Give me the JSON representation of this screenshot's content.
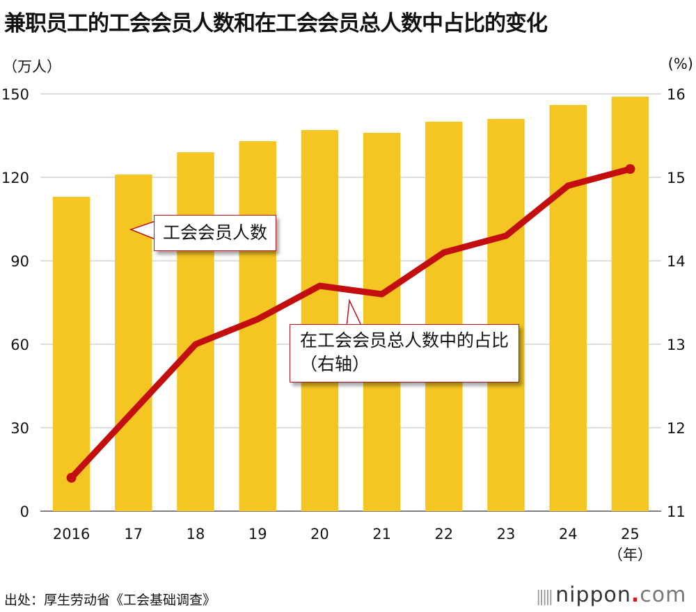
{
  "title": "兼职员工的工会会员人数和在工会会员总人数中占比的变化",
  "unit_left": "（万人）",
  "unit_right": "(%)",
  "source": "出处：厚生劳动省《工会基础调查》",
  "brand": {
    "name": "nippon",
    "dot": ".",
    "tld": "com"
  },
  "callouts": {
    "members": "工会会员人数",
    "ratio_line1": "在工会会员总人数中的占比",
    "ratio_line2": "（右轴）"
  },
  "colors": {
    "bar": "#f5c623",
    "line": "#c20e0e",
    "grid": "#bdbdbd",
    "callout_border": "#c0111a"
  },
  "chart_data": {
    "type": "bar+line",
    "categories": [
      "2016",
      "17",
      "18",
      "19",
      "20",
      "21",
      "22",
      "23",
      "24",
      "25"
    ],
    "x_unit_label": "（年）",
    "series": [
      {
        "name": "工会会员人数",
        "type": "bar",
        "axis": "left",
        "values": [
          113,
          121,
          129,
          133,
          137,
          136,
          140,
          141,
          146,
          149
        ]
      },
      {
        "name": "在工会会员总人数中的占比",
        "type": "line",
        "axis": "right",
        "values": [
          11.4,
          12.2,
          13.0,
          13.3,
          13.7,
          13.6,
          14.1,
          14.3,
          14.9,
          15.1
        ]
      }
    ],
    "y_left": {
      "min": 0,
      "max": 150,
      "ticks": [
        0,
        30,
        60,
        90,
        120,
        150
      ]
    },
    "y_right": {
      "min": 11,
      "max": 16,
      "ticks": [
        11,
        12,
        13,
        14,
        15,
        16
      ]
    },
    "grid": true
  }
}
